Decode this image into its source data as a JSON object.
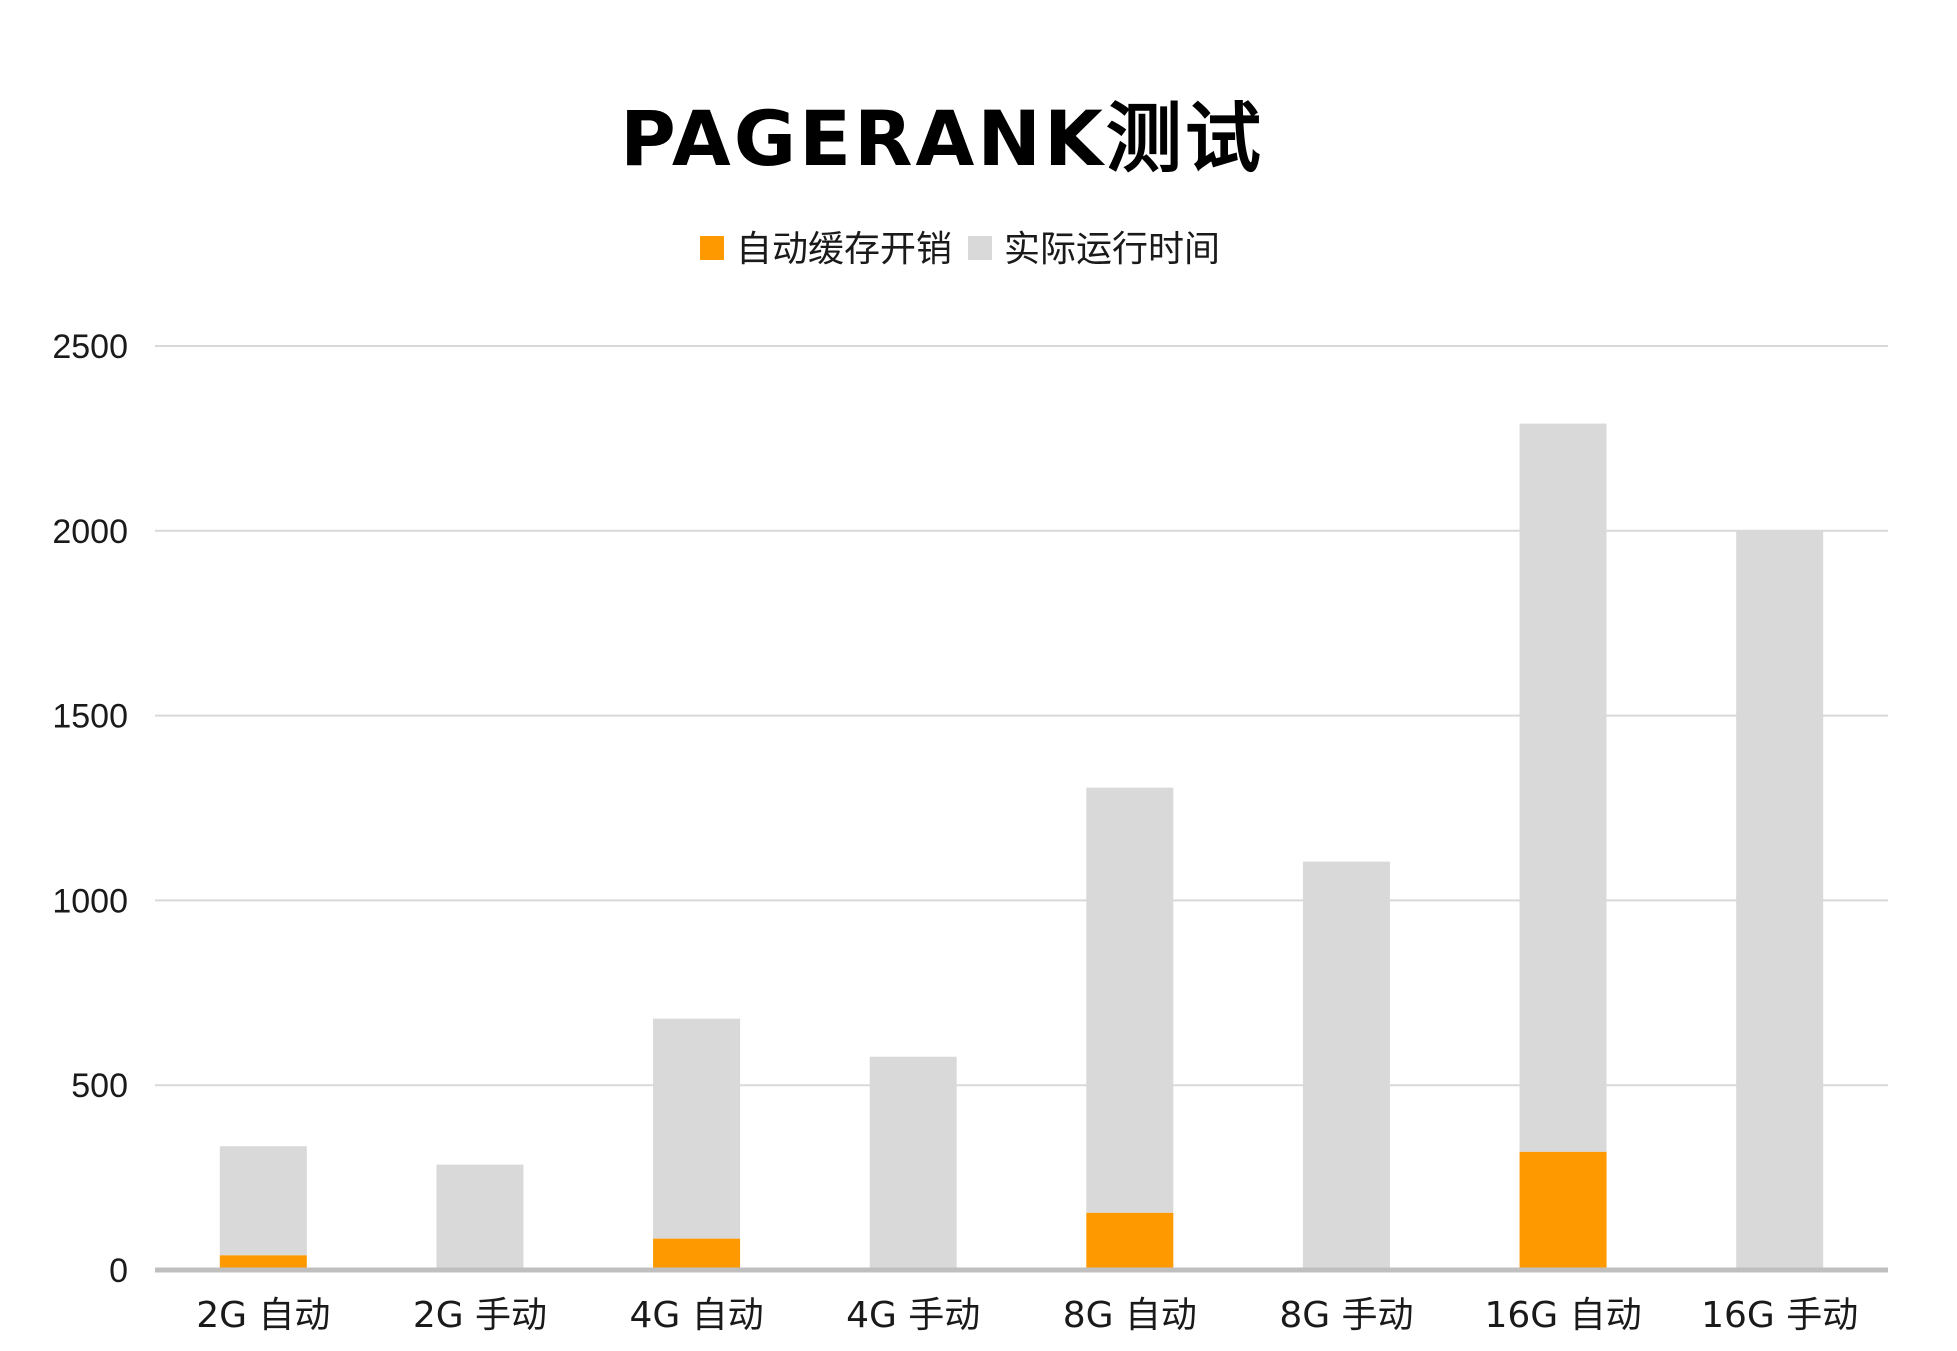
{
  "chart_data": {
    "type": "bar",
    "stacked": true,
    "title": "PAGERANK测试",
    "categories": [
      "2G 自动",
      "2G 手动",
      "4G 自动",
      "4G 手动",
      "8G 自动",
      "8G 手动",
      "16G 自动",
      "16G 手动"
    ],
    "series": [
      {
        "name": "自动缓存开销",
        "color": "#FF9900",
        "values": [
          40,
          0,
          85,
          0,
          155,
          0,
          320,
          0
        ]
      },
      {
        "name": "实际运行时间",
        "color": "#D9D9D9",
        "values": [
          295,
          285,
          595,
          577,
          1150,
          1105,
          1970,
          2000
        ]
      }
    ],
    "ylim": [
      0,
      2500
    ],
    "yticks": [
      "0",
      "500",
      "1000",
      "1500",
      "2000",
      "2500"
    ],
    "grid": true,
    "legend_position": "top-center",
    "gridline_color": "#D9D9D9",
    "axis_color": "#BFBFBF"
  }
}
